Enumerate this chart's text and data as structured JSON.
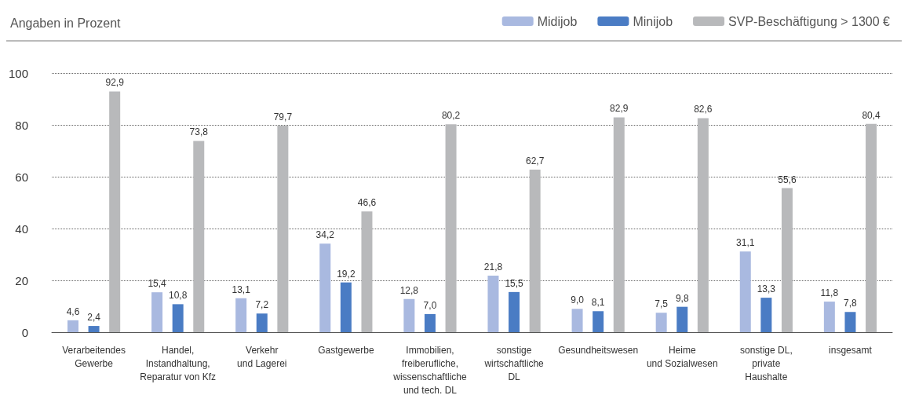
{
  "chart_data": {
    "type": "bar",
    "title": "Angaben in Prozent",
    "categories": [
      "Verarbeitendes\nGewerbe",
      "Handel,\nInstandhaltung,\nReparatur von Kfz",
      "Verkehr\nund Lagerei",
      "Gastgewerbe",
      "Immobilien,\nfreiberufliche,\nwissenschaftliche\nund tech. DL",
      "sonstige\nwirtschaftliche\nDL",
      "Gesundheitswesen",
      "Heime\nund Sozialwesen",
      "sonstige DL,\nprivate\nHaushalte",
      "insgesamt"
    ],
    "series": [
      {
        "name": "Midijob",
        "color": "#a9b9e0",
        "values": [
          4.6,
          15.4,
          13.1,
          34.2,
          12.8,
          21.8,
          9.0,
          7.5,
          31.1,
          11.8
        ],
        "value_labels": [
          "4,6",
          "15,4",
          "13,1",
          "34,2",
          "12,8",
          "21,8",
          "9,0",
          "7,5",
          "31,1",
          "11,8"
        ]
      },
      {
        "name": "Minijob",
        "color": "#4a7cc4",
        "values": [
          2.4,
          10.8,
          7.2,
          19.2,
          7.0,
          15.5,
          8.1,
          9.8,
          13.3,
          7.8
        ],
        "value_labels": [
          "2,4",
          "10,8",
          "7,2",
          "19,2",
          "7,0",
          "15,5",
          "8,1",
          "9,8",
          "13,3",
          "7,8"
        ]
      },
      {
        "name": "SVP-Beschäftigung > 1300 €",
        "color": "#b8b9bb",
        "values": [
          92.9,
          73.8,
          79.7,
          46.6,
          80.2,
          62.7,
          82.9,
          82.6,
          55.6,
          80.4
        ],
        "value_labels": [
          "92,9",
          "73,8",
          "79,7",
          "46,6",
          "80,2",
          "62,7",
          "82,9",
          "82,6",
          "55,6",
          "80,4"
        ]
      }
    ],
    "ylim": [
      0,
      100
    ],
    "yticks": [
      0,
      20,
      40,
      60,
      80,
      100
    ],
    "grid": "y",
    "legend": "top right"
  }
}
